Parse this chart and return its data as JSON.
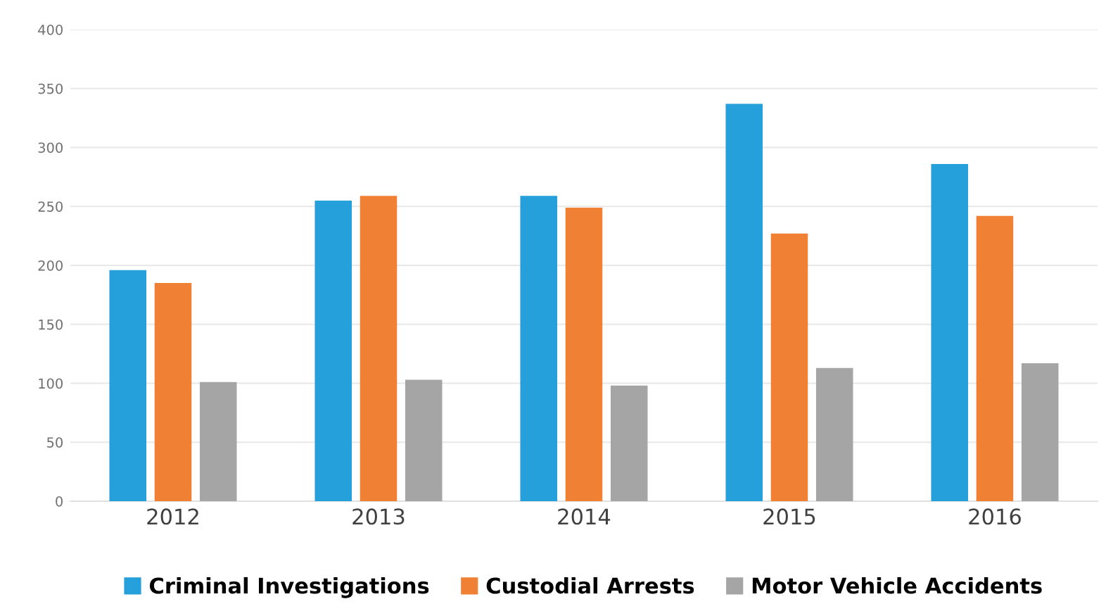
{
  "chart_data": {
    "type": "bar",
    "categories": [
      "2012",
      "2013",
      "2014",
      "2015",
      "2016"
    ],
    "series": [
      {
        "name": "Criminal Investigations",
        "color": "#25a0da",
        "values": [
          196,
          255,
          259,
          337,
          286
        ]
      },
      {
        "name": "Custodial Arrests",
        "color": "#f08034",
        "values": [
          185,
          259,
          249,
          227,
          242
        ]
      },
      {
        "name": "Motor Vehicle Accidents",
        "color": "#a5a5a5",
        "values": [
          101,
          103,
          98,
          113,
          117
        ]
      }
    ],
    "ylim": [
      0,
      400
    ],
    "yticks": [
      0,
      50,
      100,
      150,
      200,
      250,
      300,
      350,
      400
    ],
    "grid": "y",
    "legend": "bottom"
  }
}
